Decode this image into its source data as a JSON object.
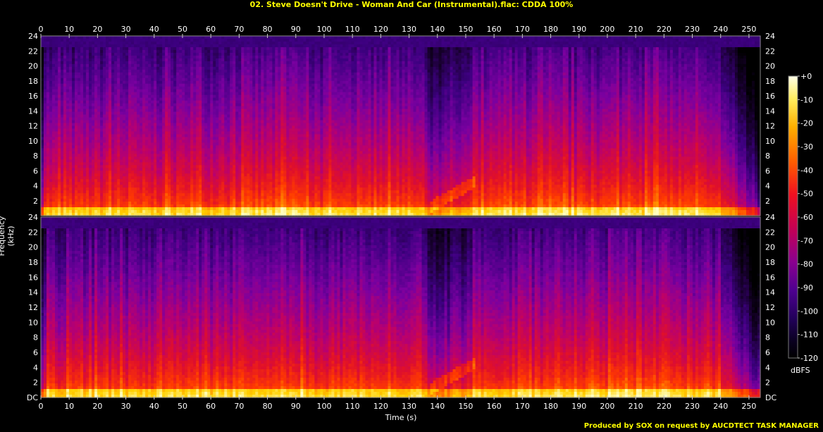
{
  "title": "02. Steve Doesn't Drive - Woman And Car (Instrumental).flac: CDDA 100%",
  "footer": "Produced by SOX on request by AUCDTECT TASK MANAGER",
  "chart_data": {
    "type": "heatmap",
    "title": "02. Steve Doesn't Drive - Woman And Car (Instrumental).flac: CDDA 100%",
    "xlabel": "Time (s)",
    "ylabel": "Frequency (kHz)",
    "colorbar_label": "dBFS",
    "x_range": [
      0,
      254
    ],
    "x_ticks": [
      0,
      10,
      20,
      30,
      40,
      50,
      60,
      70,
      80,
      90,
      100,
      110,
      120,
      130,
      140,
      150,
      160,
      170,
      180,
      190,
      200,
      210,
      220,
      230,
      240,
      250
    ],
    "y_range": [
      0,
      24
    ],
    "y_ticks": [
      "DC",
      "2",
      "4",
      "6",
      "8",
      "10",
      "12",
      "14",
      "16",
      "18",
      "20",
      "22",
      "24"
    ],
    "colorbar_range": [
      -120,
      0
    ],
    "colorbar_ticks": [
      "+0",
      "-10",
      "-20",
      "-30",
      "-40",
      "-50",
      "-60",
      "-70",
      "-80",
      "-90",
      "-100",
      "-110",
      "-120"
    ],
    "channels": 2,
    "colormap": [
      "#000000",
      "#1a0033",
      "#3d0080",
      "#7a00a0",
      "#b80070",
      "#e0102a",
      "#ff3a00",
      "#ff8a00",
      "#ffd000",
      "#ffffc0"
    ],
    "bandwidth_cutoff_khz": 22.5,
    "energy_profile": [
      {
        "t": 0,
        "level": 0.4
      },
      {
        "t": 2,
        "level": 0.6
      },
      {
        "t": 30,
        "level": 0.62
      },
      {
        "t": 60,
        "level": 0.62
      },
      {
        "t": 85,
        "level": 0.66
      },
      {
        "t": 100,
        "level": 0.62
      },
      {
        "t": 120,
        "level": 0.64
      },
      {
        "t": 135,
        "level": 0.62
      },
      {
        "t": 137,
        "level": 0.48
      },
      {
        "t": 152,
        "level": 0.55
      },
      {
        "t": 153,
        "level": 0.63
      },
      {
        "t": 200,
        "level": 0.64
      },
      {
        "t": 220,
        "level": 0.66
      },
      {
        "t": 240,
        "level": 0.6
      },
      {
        "t": 246,
        "level": 0.45
      },
      {
        "t": 252,
        "level": 0.3
      },
      {
        "t": 254,
        "level": 0.2
      }
    ]
  }
}
